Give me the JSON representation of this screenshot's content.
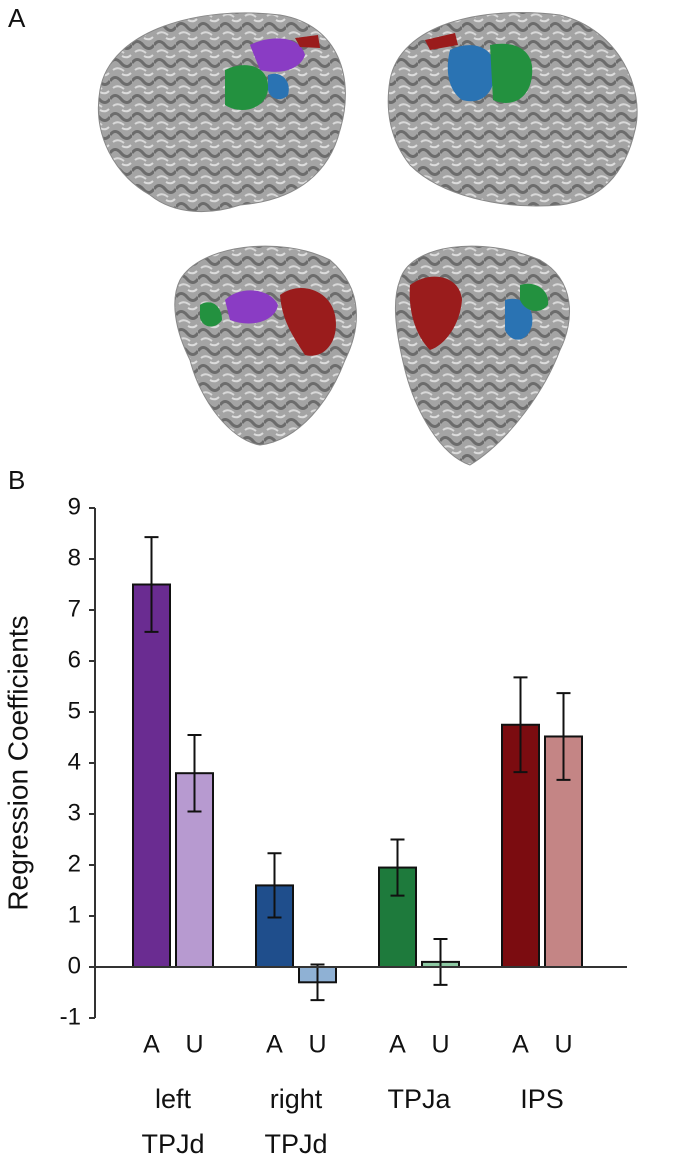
{
  "panel_labels": [
    "A",
    "B"
  ],
  "chart_data": {
    "type": "bar",
    "y_label": "Regression Coefficients",
    "categories": [
      "left TPJd",
      "right TPJd",
      "TPJa",
      "IPS"
    ],
    "series": [
      {
        "name": "A",
        "colors": [
          "#6a2c91",
          "#1f4e8c",
          "#1e7a3c",
          "#7b0c10"
        ],
        "values": [
          7.5,
          1.6,
          1.95,
          4.75
        ],
        "errors": [
          0.93,
          0.63,
          0.55,
          0.93
        ]
      },
      {
        "name": "U",
        "colors": [
          "#b79ad0",
          "#8fb1d4",
          "#8dc9a3",
          "#c48585"
        ],
        "values": [
          3.8,
          -0.3,
          0.1,
          4.52
        ],
        "errors": [
          0.75,
          0.35,
          0.45,
          0.85
        ]
      }
    ],
    "ylim": [
      -1,
      9
    ],
    "yticks": [
      -1,
      0,
      1,
      2,
      3,
      4,
      5,
      6,
      7,
      8,
      9
    ],
    "grid": false
  }
}
